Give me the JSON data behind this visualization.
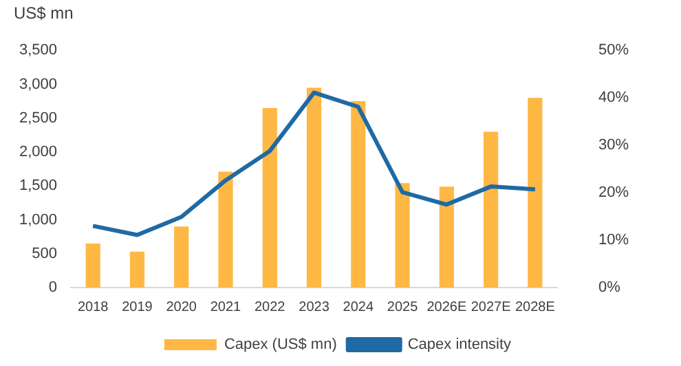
{
  "chart_data": {
    "type": "bar",
    "ylabel": "US$ mn",
    "categories": [
      "2018",
      "2019",
      "2020",
      "2021",
      "2022",
      "2023",
      "2024",
      "2025",
      "2026E",
      "2027E",
      "2028E"
    ],
    "series": [
      {
        "name": "Capex (US$ mn)",
        "color": "#ffb843",
        "values": [
          650,
          530,
          900,
          1710,
          2650,
          2950,
          2750,
          1540,
          1490,
          2300,
          2800
        ]
      },
      {
        "name": "Capex intensity",
        "type": "line",
        "axis": "y2",
        "color": "#1f6aa5",
        "values": [
          13.0,
          11.1,
          14.9,
          22.6,
          28.8,
          41.1,
          38.1,
          20.1,
          17.5,
          21.3,
          20.7
        ]
      }
    ],
    "ylim": [
      0,
      3500
    ],
    "yticks": [
      {
        "value": 0,
        "label": "0"
      },
      {
        "value": 500,
        "label": "500"
      },
      {
        "value": 1000,
        "label": "1,000"
      },
      {
        "value": 1500,
        "label": "1,500"
      },
      {
        "value": 2000,
        "label": "2,000"
      },
      {
        "value": 2500,
        "label": "2,500"
      },
      {
        "value": 3000,
        "label": "3,000"
      },
      {
        "value": 3500,
        "label": "3,500"
      }
    ],
    "y2lim": [
      0,
      50
    ],
    "y2ticks": [
      {
        "value": 0,
        "label": "0%"
      },
      {
        "value": 10,
        "label": "10%"
      },
      {
        "value": 20,
        "label": "20%"
      },
      {
        "value": 30,
        "label": "30%"
      },
      {
        "value": 40,
        "label": "40%"
      },
      {
        "value": 50,
        "label": "50%"
      }
    ],
    "legend": "bottom",
    "grid": false
  }
}
